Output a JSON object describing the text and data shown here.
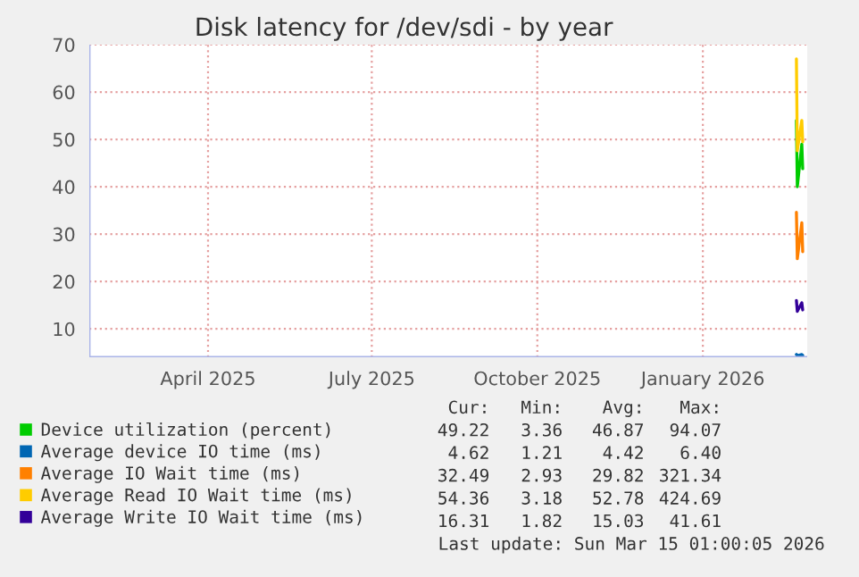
{
  "chart_data": {
    "type": "line",
    "title": "Disk latency for /dev/sdi - by year",
    "xlim": [
      "2025-02-09",
      "2026-03-15"
    ],
    "xticks": [
      {
        "value": "2025-04-16",
        "label": "April 2025"
      },
      {
        "value": "2025-07-16",
        "label": "July 2025"
      },
      {
        "value": "2025-10-16",
        "label": "October 2025"
      },
      {
        "value": "2026-01-16",
        "label": "January 2026"
      }
    ],
    "ylim": [
      4,
      70
    ],
    "yticks": [
      10,
      20,
      30,
      40,
      50,
      60,
      70
    ],
    "grid": true,
    "legend": "bottom",
    "marker": "none",
    "line_style": "solid",
    "series": [
      {
        "name": "Device utilization (percent)",
        "color": "#00cc00",
        "x": [
          "2026-03-09T00:00",
          "2026-03-09T12:00",
          "2026-03-12T00:00",
          "2026-03-12T12:00"
        ],
        "values": [
          54,
          40,
          49,
          43.8
        ]
      },
      {
        "name": "Average device IO time (ms)",
        "color": "#0066b3",
        "x": [
          "2026-03-09T00:00",
          "2026-03-09T12:00",
          "2026-03-12T00:00",
          "2026-03-12T12:00"
        ],
        "values": [
          4.6,
          4.3,
          4.6,
          4.4
        ]
      },
      {
        "name": "Average IO Wait time (ms)",
        "color": "#ff8000",
        "x": [
          "2026-03-09T00:00",
          "2026-03-09T12:00",
          "2026-03-12T00:00",
          "2026-03-12T12:00"
        ],
        "values": [
          34.6,
          24.8,
          32.4,
          26.3
        ]
      },
      {
        "name": "Average Read IO Wait time (ms)",
        "color": "#ffcc00",
        "x": [
          "2026-03-09T00:00",
          "2026-03-09T12:00",
          "2026-03-12T00:00",
          "2026-03-12T12:00"
        ],
        "values": [
          67,
          47.6,
          54,
          49.5
        ]
      },
      {
        "name": "Average Write IO Wait time (ms)",
        "color": "#330099",
        "x": [
          "2026-03-09T00:00",
          "2026-03-09T12:00",
          "2026-03-12T00:00",
          "2026-03-12T12:00"
        ],
        "values": [
          16,
          13.7,
          15.5,
          14
        ]
      }
    ],
    "annotations": [
      "Cur:",
      "Min:",
      "Avg:",
      "Max:",
      "49.22",
      "3.36",
      "46.87",
      "94.07",
      "4.62",
      "1.21",
      "4.42",
      "6.40",
      "32.49",
      "2.93",
      "29.82",
      "321.34",
      "54.36",
      "3.18",
      "52.78",
      "424.69",
      "16.31",
      "1.82",
      "15.03",
      "41.61",
      "Last update: Sun Mar 15 01:00:05 2026"
    ]
  }
}
